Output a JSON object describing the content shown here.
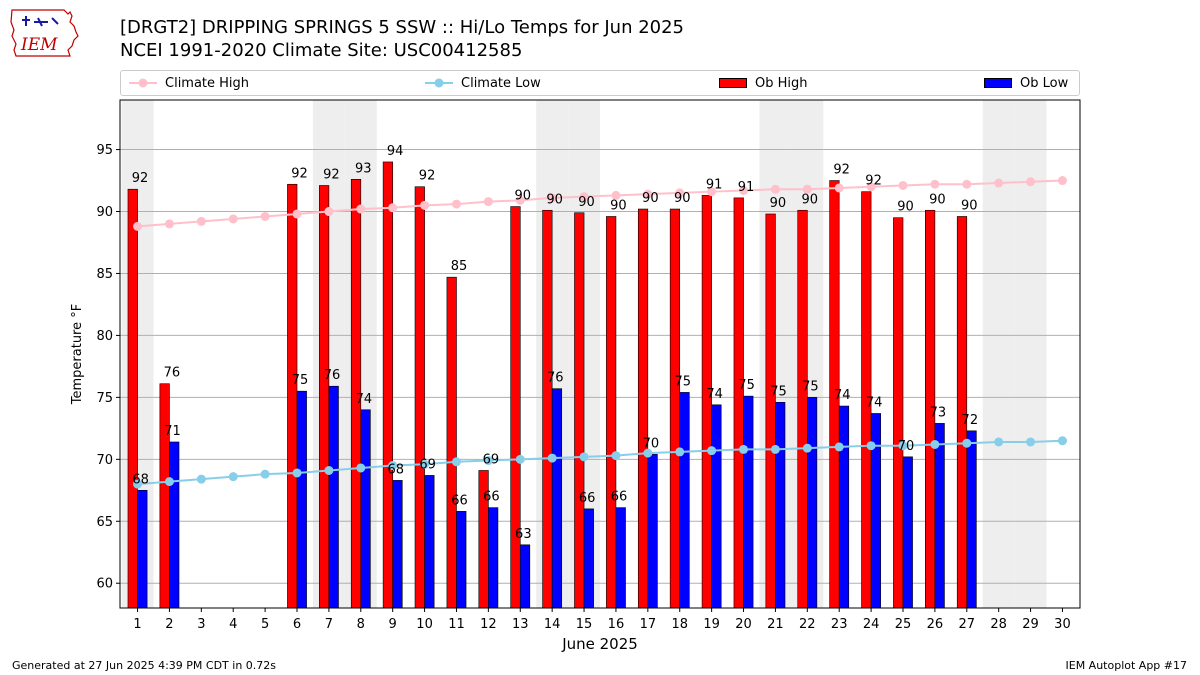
{
  "header": {
    "title_line1": "[DRGT2] DRIPPING SPRINGS 5 SSW :: Hi/Lo Temps for Jun 2025",
    "title_line2": "NCEI 1991-2020 Climate Site: USC00412585",
    "logo_text": "IEM"
  },
  "legend": {
    "climate_high": "Climate High",
    "climate_low": "Climate Low",
    "ob_high": "Ob High",
    "ob_low": "Ob Low"
  },
  "footer": {
    "generated": "Generated at 27 Jun 2025 4:39 PM CDT in 0.72s",
    "app": "IEM Autoplot App #17"
  },
  "colors": {
    "ob_high": "#ff0000",
    "ob_low": "#0000ff",
    "climate_high": "#ffc0cb",
    "climate_low": "#87ceeb",
    "weekend_shade": "#eeeeee",
    "grid": "#b0b0b0"
  },
  "chart_data": {
    "type": "bar",
    "xlabel": "June 2025",
    "ylabel": "Temperature °F",
    "ylim": [
      58,
      99
    ],
    "yticks": [
      60,
      65,
      70,
      75,
      80,
      85,
      90,
      95
    ],
    "grid": "horizontal",
    "legend_position": "top",
    "days": [
      1,
      2,
      3,
      4,
      5,
      6,
      7,
      8,
      9,
      10,
      11,
      12,
      13,
      14,
      15,
      16,
      17,
      18,
      19,
      20,
      21,
      22,
      23,
      24,
      25,
      26,
      27,
      28,
      29,
      30
    ],
    "weekend_days": [
      1,
      7,
      8,
      14,
      15,
      21,
      22,
      28,
      29
    ],
    "series": [
      {
        "name": "Ob High",
        "kind": "bar",
        "values": [
          91.8,
          76.1,
          null,
          null,
          null,
          92.2,
          92.1,
          92.6,
          94.0,
          92.0,
          84.7,
          69.1,
          90.4,
          90.1,
          89.9,
          89.6,
          90.2,
          90.2,
          91.3,
          91.1,
          89.8,
          90.1,
          92.5,
          91.6,
          89.5,
          90.1,
          89.6,
          null,
          null,
          null
        ],
        "labels": [
          92,
          76,
          null,
          null,
          null,
          92,
          92,
          93,
          94,
          92,
          85,
          69,
          90,
          90,
          90,
          90,
          90,
          90,
          91,
          91,
          90,
          90,
          92,
          92,
          90,
          90,
          90,
          null,
          null,
          null
        ]
      },
      {
        "name": "Ob Low",
        "kind": "bar",
        "values": [
          67.5,
          71.4,
          null,
          null,
          null,
          75.5,
          75.9,
          74.0,
          68.3,
          68.7,
          65.8,
          66.1,
          63.1,
          75.7,
          66.0,
          66.1,
          70.4,
          75.4,
          74.4,
          75.1,
          74.6,
          75.0,
          74.3,
          73.7,
          70.2,
          72.9,
          72.3,
          null,
          null,
          null
        ],
        "labels": [
          68,
          71,
          null,
          null,
          null,
          75,
          76,
          74,
          68,
          69,
          66,
          66,
          63,
          76,
          66,
          66,
          70,
          75,
          74,
          75,
          75,
          75,
          74,
          74,
          70,
          73,
          72,
          null,
          null,
          null
        ]
      },
      {
        "name": "Climate High",
        "kind": "line",
        "values": [
          88.8,
          89.0,
          89.2,
          89.4,
          89.6,
          89.8,
          90.0,
          90.2,
          90.3,
          90.5,
          90.6,
          90.8,
          90.9,
          91.1,
          91.2,
          91.3,
          91.4,
          91.5,
          91.6,
          91.7,
          91.8,
          91.8,
          91.9,
          92.0,
          92.1,
          92.2,
          92.2,
          92.3,
          92.4,
          92.5
        ]
      },
      {
        "name": "Climate Low",
        "kind": "line",
        "values": [
          68.0,
          68.2,
          68.4,
          68.6,
          68.8,
          68.9,
          69.1,
          69.3,
          69.5,
          69.6,
          69.8,
          69.9,
          70.0,
          70.1,
          70.2,
          70.3,
          70.5,
          70.6,
          70.7,
          70.8,
          70.8,
          70.9,
          71.0,
          71.1,
          71.1,
          71.2,
          71.3,
          71.4,
          71.4,
          71.5
        ]
      }
    ]
  }
}
